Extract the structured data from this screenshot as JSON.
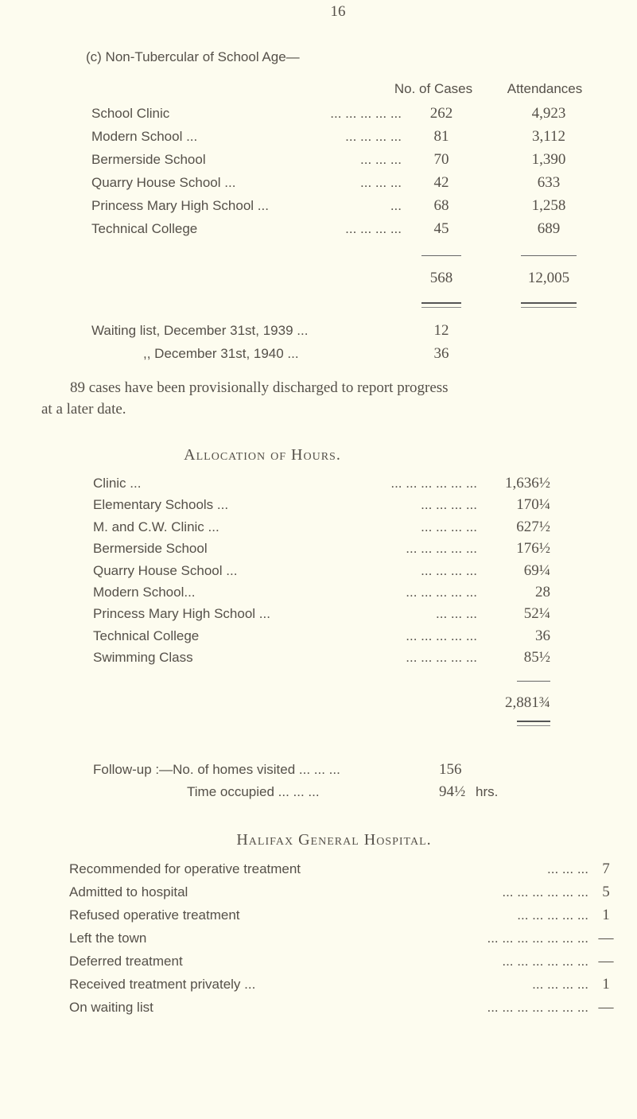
{
  "page_number": "16",
  "section_c": {
    "heading": "(c) Non-Tubercular of School Age—",
    "col_cases": "No. of Cases",
    "col_attendances": "Attendances",
    "rows": [
      {
        "label": "School Clinic",
        "dots": "...   ...   ...   ...   ...",
        "cases": "262",
        "attendances": "4,923"
      },
      {
        "label": "Modern School ...",
        "dots": "...   ...   ...   ...",
        "cases": "81",
        "attendances": "3,112"
      },
      {
        "label": "Bermerside School",
        "dots": "...   ...   ...",
        "cases": "70",
        "attendances": "1,390"
      },
      {
        "label": "Quarry House School ...",
        "dots": "...   ...   ...",
        "cases": "42",
        "attendances": "633"
      },
      {
        "label": "Princess Mary High School ...",
        "dots": "...",
        "cases": "68",
        "attendances": "1,258"
      },
      {
        "label": "Technical College",
        "dots": "...   ...   ...   ...",
        "cases": "45",
        "attendances": "689"
      }
    ],
    "total_cases": "568",
    "total_attendances": "12,005",
    "waiting": [
      {
        "label": "Waiting list, December 31st, 1939 ...",
        "value": "12"
      },
      {
        "label": ",,   December 31st, 1940 ...",
        "value": "36"
      }
    ],
    "note_line1": "89 cases have been provisionally discharged to report progress",
    "note_line2": "at a later date."
  },
  "allocation": {
    "heading": "Allocation of Hours.",
    "rows": [
      {
        "label": "Clinic ...",
        "dots": "...   ...   ...   ...   ...   ...",
        "value": "1,636½"
      },
      {
        "label": "Elementary Schools ...",
        "dots": "...   ...   ...   ...",
        "value": "170¼"
      },
      {
        "label": "M. and C.W. Clinic ...",
        "dots": "...   ...   ...   ...",
        "value": "627½"
      },
      {
        "label": "Bermerside School",
        "dots": "...   ...   ...   ...   ...",
        "value": "176½"
      },
      {
        "label": "Quarry House School ...",
        "dots": "...   ...   ...   ...",
        "value": "69¼"
      },
      {
        "label": "Modern School...",
        "dots": "...   ...   ...   ...   ...",
        "value": "28"
      },
      {
        "label": "Princess Mary High School ...",
        "dots": "...   ...   ...",
        "value": "52¼"
      },
      {
        "label": "Technical College",
        "dots": "...   ...   ...   ...   ...",
        "value": "36"
      },
      {
        "label": "Swimming Class",
        "dots": "...   ...   ...   ...   ...",
        "value": "85½"
      }
    ],
    "total": "2,881¾",
    "followup_label": "Follow-up :—No. of homes visited ...   ...   ...",
    "followup_value": "156",
    "time_label": "Time occupied ...   ...   ...",
    "time_value": "94½",
    "time_unit": "hrs."
  },
  "hospital": {
    "heading": "Halifax General Hospital.",
    "rows": [
      {
        "label": "Recommended for operative treatment",
        "dots": "...   ...   ...",
        "value": "7"
      },
      {
        "label": "Admitted to hospital",
        "dots": "...   ...   ...   ...   ...   ...",
        "value": "5"
      },
      {
        "label": "Refused operative treatment",
        "dots": "...   ...   ...   ...   ...",
        "value": "1"
      },
      {
        "label": "Left the town",
        "dots": "...   ...   ...   ...   ...   ...   ...",
        "value": "—"
      },
      {
        "label": "Deferred treatment",
        "dots": "...   ...   ...   ...   ...   ...",
        "value": "—"
      },
      {
        "label": "Received treatment privately ...",
        "dots": "...   ...   ...   ...",
        "value": "1"
      },
      {
        "label": "On waiting list",
        "dots": "...   ...   ...   ...   ...   ...   ...",
        "value": "—"
      }
    ]
  }
}
